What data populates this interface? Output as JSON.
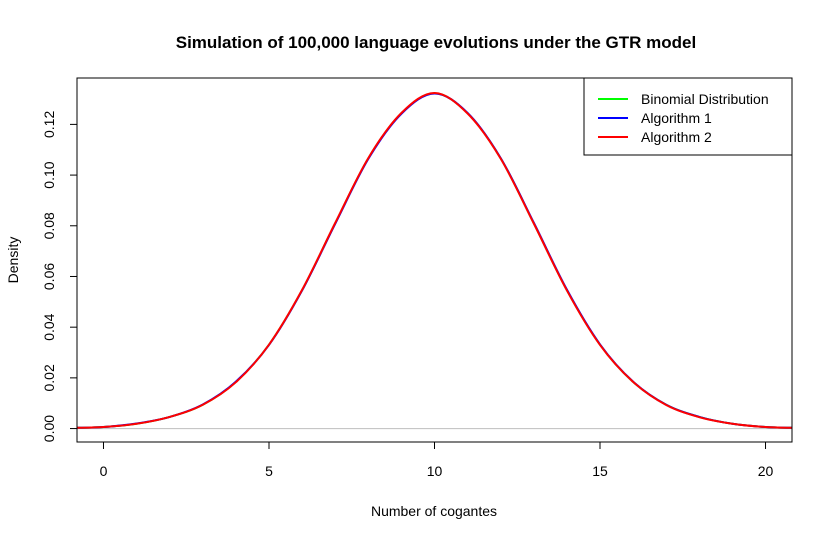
{
  "chart_data": {
    "type": "line",
    "title": "Simulation of 100,000 language evolutions under the GTR model",
    "xlabel": "Number of cogantes",
    "ylabel": "Density",
    "xlim": [
      -0.8,
      20.8
    ],
    "ylim": [
      -0.0053,
      0.1383
    ],
    "x_ticks": [
      0,
      5,
      10,
      15,
      20
    ],
    "x_tick_labels": [
      "0",
      "5",
      "10",
      "15",
      "20"
    ],
    "y_ticks": [
      0.0,
      0.02,
      0.04,
      0.06,
      0.08,
      0.1,
      0.12
    ],
    "y_tick_labels": [
      "0.00",
      "0.02",
      "0.04",
      "0.06",
      "0.08",
      "0.10",
      "0.12"
    ],
    "legend_position": "top-right",
    "reference_line": {
      "y": 0,
      "color": "#bebebe"
    },
    "series": [
      {
        "name": "Binomial Distribution",
        "color": "#00ff00",
        "x": [
          -0.8,
          0,
          1,
          2,
          3,
          4,
          5,
          6,
          7,
          8,
          9,
          10,
          11,
          12,
          13,
          14,
          15,
          16,
          17,
          18,
          19,
          20,
          20.8
        ],
        "y": [
          0.0003,
          0.0006,
          0.0019,
          0.0046,
          0.0094,
          0.0184,
          0.0331,
          0.0546,
          0.081,
          0.1066,
          0.1244,
          0.1323,
          0.1244,
          0.1066,
          0.081,
          0.0546,
          0.0331,
          0.0184,
          0.0094,
          0.0046,
          0.0019,
          0.0006,
          0.0003
        ]
      },
      {
        "name": "Algorithm 1",
        "color": "#0000ff",
        "x": [
          -0.8,
          0,
          1,
          2,
          3,
          4,
          5,
          6,
          7,
          8,
          9,
          10,
          11,
          12,
          13,
          14,
          15,
          16,
          17,
          18,
          19,
          20,
          20.8
        ],
        "y": [
          0.0003,
          0.0006,
          0.002,
          0.0046,
          0.0095,
          0.0185,
          0.033,
          0.0545,
          0.0808,
          0.1064,
          0.1242,
          0.1322,
          0.1245,
          0.1067,
          0.0812,
          0.0548,
          0.0332,
          0.0185,
          0.0094,
          0.0046,
          0.0019,
          0.0006,
          0.0003
        ]
      },
      {
        "name": "Algorithm 2",
        "color": "#ff0000",
        "x": [
          -0.8,
          0,
          1,
          2,
          3,
          4,
          5,
          6,
          7,
          8,
          9,
          10,
          11,
          12,
          13,
          14,
          15,
          16,
          17,
          18,
          19,
          20,
          20.8
        ],
        "y": [
          0.0003,
          0.0006,
          0.0019,
          0.0046,
          0.0094,
          0.0183,
          0.0331,
          0.0547,
          0.0811,
          0.1067,
          0.1245,
          0.1324,
          0.1243,
          0.1065,
          0.0809,
          0.0545,
          0.033,
          0.0184,
          0.0093,
          0.0045,
          0.0019,
          0.0006,
          0.0003
        ]
      }
    ]
  }
}
